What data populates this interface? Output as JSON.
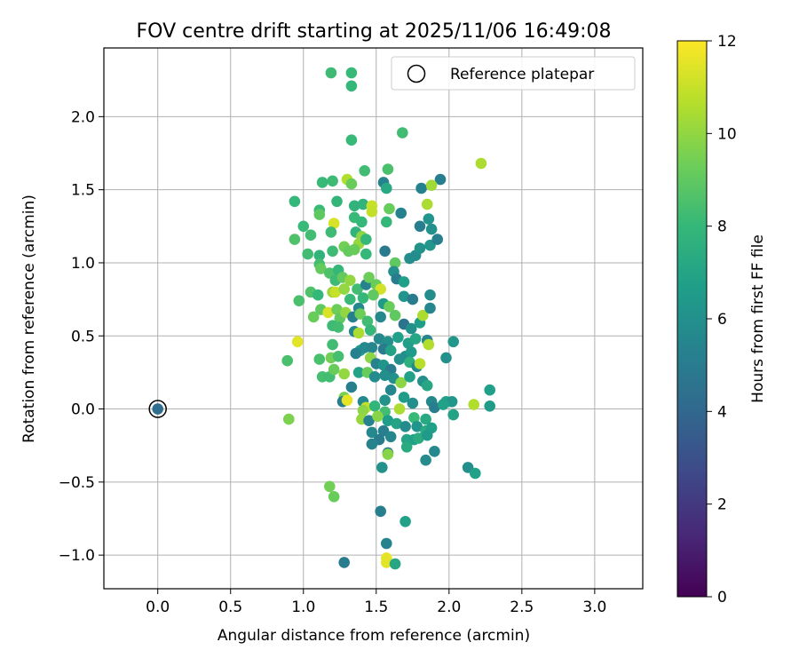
{
  "chart_data": {
    "type": "scatter",
    "title": "FOV centre drift starting at 2025/11/06 16:49:08",
    "xlabel": "Angular distance from reference (arcmin)",
    "ylabel": "Rotation from reference (arcmin)",
    "xlim": [
      -0.37,
      3.33
    ],
    "ylim": [
      -1.23,
      2.47
    ],
    "xticks": [
      0.0,
      0.5,
      1.0,
      1.5,
      2.0,
      2.5,
      3.0
    ],
    "xtick_labels": [
      "0.0",
      "0.5",
      "1.0",
      "1.5",
      "2.0",
      "2.5",
      "3.0"
    ],
    "yticks": [
      -1.0,
      -0.5,
      0.0,
      0.5,
      1.0,
      1.5,
      2.0
    ],
    "ytick_labels": [
      "−1.0",
      "−0.5",
      "0.0",
      "0.5",
      "1.0",
      "1.5",
      "2.0"
    ],
    "grid": true,
    "legend": {
      "position": "top-right",
      "label": "Reference platepar"
    },
    "colorbar": {
      "label": "Hours from first FF file",
      "min": 0,
      "max": 12,
      "ticks": [
        0,
        2,
        4,
        6,
        8,
        10,
        12
      ],
      "tick_labels": [
        "0",
        "2",
        "4",
        "6",
        "8",
        "10",
        "12"
      ],
      "colormap": "viridis",
      "stops": [
        "#440154",
        "#482878",
        "#3e4989",
        "#31688e",
        "#26828e",
        "#1f9e89",
        "#35b779",
        "#6ece58",
        "#b5de2b",
        "#fde725"
      ]
    },
    "reference_point": {
      "x": 0.0,
      "y": 0.0,
      "hours": 4.3
    },
    "points": [
      [
        1.19,
        2.3,
        8.2
      ],
      [
        1.33,
        2.3,
        8.1
      ],
      [
        1.33,
        2.21,
        8.0
      ],
      [
        1.68,
        1.89,
        8.3
      ],
      [
        1.33,
        1.84,
        8.1
      ],
      [
        2.22,
        1.68,
        10.5
      ],
      [
        1.58,
        1.64,
        8.5
      ],
      [
        1.94,
        1.57,
        5.2
      ],
      [
        1.3,
        1.57,
        10.6
      ],
      [
        1.55,
        1.55,
        5.4
      ],
      [
        1.2,
        1.56,
        8.2
      ],
      [
        1.13,
        1.55,
        8.1
      ],
      [
        1.57,
        1.51,
        7.2
      ],
      [
        1.33,
        1.54,
        9.2
      ],
      [
        1.81,
        1.51,
        5.3
      ],
      [
        1.88,
        1.53,
        10.3
      ],
      [
        1.42,
        1.63,
        8.3
      ],
      [
        0.94,
        1.42,
        8.0
      ],
      [
        1.23,
        1.42,
        7.9
      ],
      [
        1.35,
        1.39,
        7.8
      ],
      [
        1.41,
        1.4,
        7.8
      ],
      [
        1.47,
        1.39,
        11.0
      ],
      [
        1.47,
        1.35,
        10.9
      ],
      [
        1.59,
        1.37,
        9.2
      ],
      [
        1.67,
        1.34,
        5.3
      ],
      [
        1.85,
        1.4,
        10.5
      ],
      [
        1.11,
        1.36,
        8.1
      ],
      [
        1.11,
        1.33,
        9.0
      ],
      [
        1.35,
        1.31,
        8.1
      ],
      [
        1.21,
        1.27,
        11.3
      ],
      [
        1.4,
        1.28,
        8.0
      ],
      [
        1.57,
        1.28,
        8.0
      ],
      [
        1.8,
        1.25,
        5.1
      ],
      [
        1.86,
        1.3,
        6.2
      ],
      [
        1.88,
        1.23,
        6.0
      ],
      [
        1.0,
        1.25,
        8.1
      ],
      [
        1.05,
        1.19,
        8.3
      ],
      [
        0.94,
        1.16,
        8.6
      ],
      [
        1.19,
        1.21,
        8.2
      ],
      [
        1.36,
        1.21,
        7.8
      ],
      [
        1.4,
        1.18,
        9.9
      ],
      [
        1.38,
        1.13,
        10.1
      ],
      [
        1.43,
        1.16,
        8.0
      ],
      [
        1.87,
        1.12,
        6.3
      ],
      [
        1.92,
        1.16,
        5.2
      ],
      [
        1.03,
        1.06,
        8.3
      ],
      [
        1.11,
        1.05,
        7.8
      ],
      [
        1.2,
        1.08,
        8.2
      ],
      [
        1.28,
        1.11,
        9.4
      ],
      [
        1.31,
        1.08,
        9.1
      ],
      [
        1.35,
        1.09,
        9.2
      ],
      [
        1.43,
        1.06,
        8.0
      ],
      [
        1.56,
        1.08,
        4.9
      ],
      [
        1.63,
        1.0,
        9.0
      ],
      [
        1.73,
        1.03,
        5.9
      ],
      [
        1.77,
        1.05,
        5.8
      ],
      [
        1.8,
        1.1,
        6.1
      ],
      [
        1.11,
        0.99,
        8.4
      ],
      [
        1.12,
        0.96,
        9.1
      ],
      [
        1.18,
        0.93,
        8.6
      ],
      [
        1.24,
        0.95,
        8.0
      ],
      [
        1.22,
        0.88,
        8.2
      ],
      [
        1.27,
        0.9,
        9.1
      ],
      [
        1.32,
        0.88,
        10.0
      ],
      [
        1.37,
        0.82,
        8.3
      ],
      [
        1.43,
        0.85,
        5.4
      ],
      [
        1.45,
        0.9,
        9.3
      ],
      [
        1.5,
        0.85,
        9.2
      ],
      [
        1.53,
        0.82,
        11.2
      ],
      [
        1.62,
        0.94,
        6.0
      ],
      [
        1.64,
        0.89,
        5.0
      ],
      [
        1.69,
        0.87,
        6.7
      ],
      [
        1.05,
        0.8,
        8.6
      ],
      [
        1.1,
        0.78,
        8.0
      ],
      [
        0.97,
        0.74,
        8.5
      ],
      [
        1.2,
        0.8,
        10.1
      ],
      [
        1.22,
        0.8,
        11.0
      ],
      [
        1.28,
        0.82,
        10.0
      ],
      [
        1.32,
        0.75,
        8.1
      ],
      [
        1.41,
        0.76,
        8.0
      ],
      [
        1.48,
        0.78,
        9.0
      ],
      [
        1.55,
        0.72,
        6.5
      ],
      [
        1.59,
        0.7,
        9.2
      ],
      [
        1.69,
        0.77,
        6.2
      ],
      [
        1.75,
        0.75,
        5.0
      ],
      [
        1.87,
        0.78,
        5.8
      ],
      [
        1.12,
        0.68,
        9.0
      ],
      [
        1.17,
        0.66,
        11.3
      ],
      [
        1.23,
        0.68,
        9.3
      ],
      [
        1.25,
        0.62,
        9.0
      ],
      [
        1.29,
        0.66,
        10.0
      ],
      [
        1.34,
        0.63,
        5.2
      ],
      [
        1.38,
        0.69,
        5.6
      ],
      [
        1.39,
        0.65,
        9.3
      ],
      [
        1.44,
        0.6,
        8.3
      ],
      [
        1.53,
        0.63,
        5.6
      ],
      [
        1.63,
        0.64,
        9.0
      ],
      [
        1.69,
        0.58,
        4.6
      ],
      [
        1.74,
        0.55,
        6.0
      ],
      [
        1.8,
        0.59,
        6.6
      ],
      [
        1.82,
        0.64,
        10.5
      ],
      [
        1.87,
        0.69,
        5.5
      ],
      [
        1.07,
        0.63,
        9.2
      ],
      [
        1.2,
        0.57,
        8.2
      ],
      [
        1.24,
        0.56,
        8.3
      ],
      [
        1.35,
        0.53,
        5.5
      ],
      [
        1.38,
        0.52,
        10.5
      ],
      [
        1.46,
        0.54,
        8.0
      ],
      [
        1.52,
        0.48,
        5.7
      ],
      [
        1.58,
        0.46,
        6.0
      ],
      [
        1.65,
        0.49,
        6.7
      ],
      [
        1.72,
        0.45,
        6.7
      ],
      [
        1.77,
        0.48,
        7.1
      ],
      [
        1.85,
        0.47,
        5.5
      ],
      [
        2.03,
        0.46,
        6.3
      ],
      [
        0.96,
        0.46,
        11.5
      ],
      [
        1.2,
        0.44,
        8.3
      ],
      [
        1.39,
        0.4,
        6.7
      ],
      [
        1.42,
        0.42,
        5.7
      ],
      [
        1.47,
        0.42,
        5.5
      ],
      [
        1.55,
        0.41,
        5.0
      ],
      [
        1.6,
        0.4,
        6.9
      ],
      [
        1.7,
        0.36,
        5.9
      ],
      [
        1.74,
        0.39,
        6.5
      ],
      [
        1.86,
        0.44,
        10.6
      ],
      [
        0.89,
        0.33,
        8.5
      ],
      [
        1.11,
        0.34,
        8.5
      ],
      [
        1.19,
        0.35,
        9.4
      ],
      [
        1.24,
        0.36,
        8.4
      ],
      [
        1.36,
        0.38,
        5.3
      ],
      [
        1.46,
        0.35,
        9.9
      ],
      [
        1.5,
        0.31,
        5.4
      ],
      [
        1.55,
        0.3,
        6.2
      ],
      [
        1.6,
        0.27,
        5.0
      ],
      [
        1.66,
        0.34,
        6.0
      ],
      [
        1.73,
        0.32,
        7.6
      ],
      [
        1.78,
        0.29,
        5.6
      ],
      [
        1.8,
        0.31,
        10.7
      ],
      [
        1.98,
        0.35,
        6.0
      ],
      [
        1.13,
        0.22,
        8.4
      ],
      [
        1.18,
        0.22,
        8.3
      ],
      [
        1.21,
        0.27,
        9.2
      ],
      [
        1.28,
        0.24,
        10.0
      ],
      [
        1.38,
        0.25,
        6.9
      ],
      [
        1.44,
        0.25,
        9.2
      ],
      [
        1.49,
        0.22,
        5.8
      ],
      [
        1.56,
        0.23,
        5.9
      ],
      [
        1.62,
        0.21,
        6.0
      ],
      [
        1.67,
        0.18,
        9.9
      ],
      [
        1.73,
        0.22,
        6.8
      ],
      [
        1.82,
        0.19,
        6.0
      ],
      [
        1.85,
        0.16,
        7.1
      ],
      [
        1.28,
        0.08,
        9.5
      ],
      [
        1.33,
        0.15,
        5.2
      ],
      [
        1.41,
        0.05,
        5.6
      ],
      [
        1.43,
        0.01,
        10.9
      ],
      [
        1.56,
        0.06,
        6.1
      ],
      [
        1.6,
        0.13,
        5.5
      ],
      [
        1.69,
        0.08,
        6.6
      ],
      [
        1.75,
        0.04,
        5.9
      ],
      [
        1.88,
        0.05,
        5.6
      ],
      [
        1.98,
        0.05,
        6.8
      ],
      [
        2.02,
        0.05,
        6.3
      ],
      [
        2.28,
        0.13,
        6.7
      ],
      [
        1.27,
        0.05,
        5.1
      ],
      [
        1.3,
        0.06,
        11.6
      ],
      [
        1.41,
        -0.01,
        9.9
      ],
      [
        1.49,
        0.02,
        7.9
      ],
      [
        1.56,
        -0.02,
        8.3
      ],
      [
        1.66,
        -0.0,
        10.5
      ],
      [
        1.76,
        -0.06,
        8.1
      ],
      [
        1.84,
        -0.07,
        7.2
      ],
      [
        1.9,
        0.01,
        5.1
      ],
      [
        1.96,
        0.03,
        6.8
      ],
      [
        2.03,
        -0.04,
        6.9
      ],
      [
        2.17,
        0.03,
        10.6
      ],
      [
        2.28,
        0.02,
        6.5
      ],
      [
        0.9,
        -0.07,
        9.6
      ],
      [
        1.4,
        -0.07,
        10.1
      ],
      [
        1.45,
        -0.08,
        5.4
      ],
      [
        1.51,
        -0.05,
        9.8
      ],
      [
        1.58,
        -0.08,
        6.6
      ],
      [
        1.64,
        -0.1,
        7.0
      ],
      [
        1.7,
        -0.12,
        5.8
      ],
      [
        1.78,
        -0.12,
        6.2
      ],
      [
        1.84,
        -0.15,
        7.3
      ],
      [
        1.88,
        -0.13,
        6.7
      ],
      [
        1.47,
        -0.16,
        5.6
      ],
      [
        1.55,
        -0.15,
        5.2
      ],
      [
        1.6,
        -0.19,
        5.5
      ],
      [
        1.71,
        -0.21,
        7.0
      ],
      [
        1.76,
        -0.21,
        6.8
      ],
      [
        1.79,
        -0.2,
        7.4
      ],
      [
        1.85,
        -0.18,
        6.5
      ],
      [
        1.52,
        -0.21,
        5.0
      ],
      [
        1.47,
        -0.24,
        5.4
      ],
      [
        1.71,
        -0.26,
        7.3
      ],
      [
        1.58,
        -0.3,
        5.0
      ],
      [
        1.58,
        -0.31,
        9.8
      ],
      [
        1.84,
        -0.35,
        5.8
      ],
      [
        1.9,
        -0.29,
        5.6
      ],
      [
        2.13,
        -0.4,
        5.9
      ],
      [
        2.18,
        -0.44,
        6.8
      ],
      [
        1.54,
        -0.4,
        6.1
      ],
      [
        1.18,
        -0.53,
        9.4
      ],
      [
        1.21,
        -0.6,
        9.2
      ],
      [
        1.53,
        -0.7,
        5.2
      ],
      [
        1.57,
        -0.92,
        5.4
      ],
      [
        1.7,
        -0.77,
        6.8
      ],
      [
        1.28,
        -1.05,
        5.0
      ],
      [
        1.57,
        -1.02,
        11.6
      ],
      [
        1.57,
        -1.05,
        11.5
      ],
      [
        1.63,
        -1.06,
        7.1
      ]
    ]
  }
}
